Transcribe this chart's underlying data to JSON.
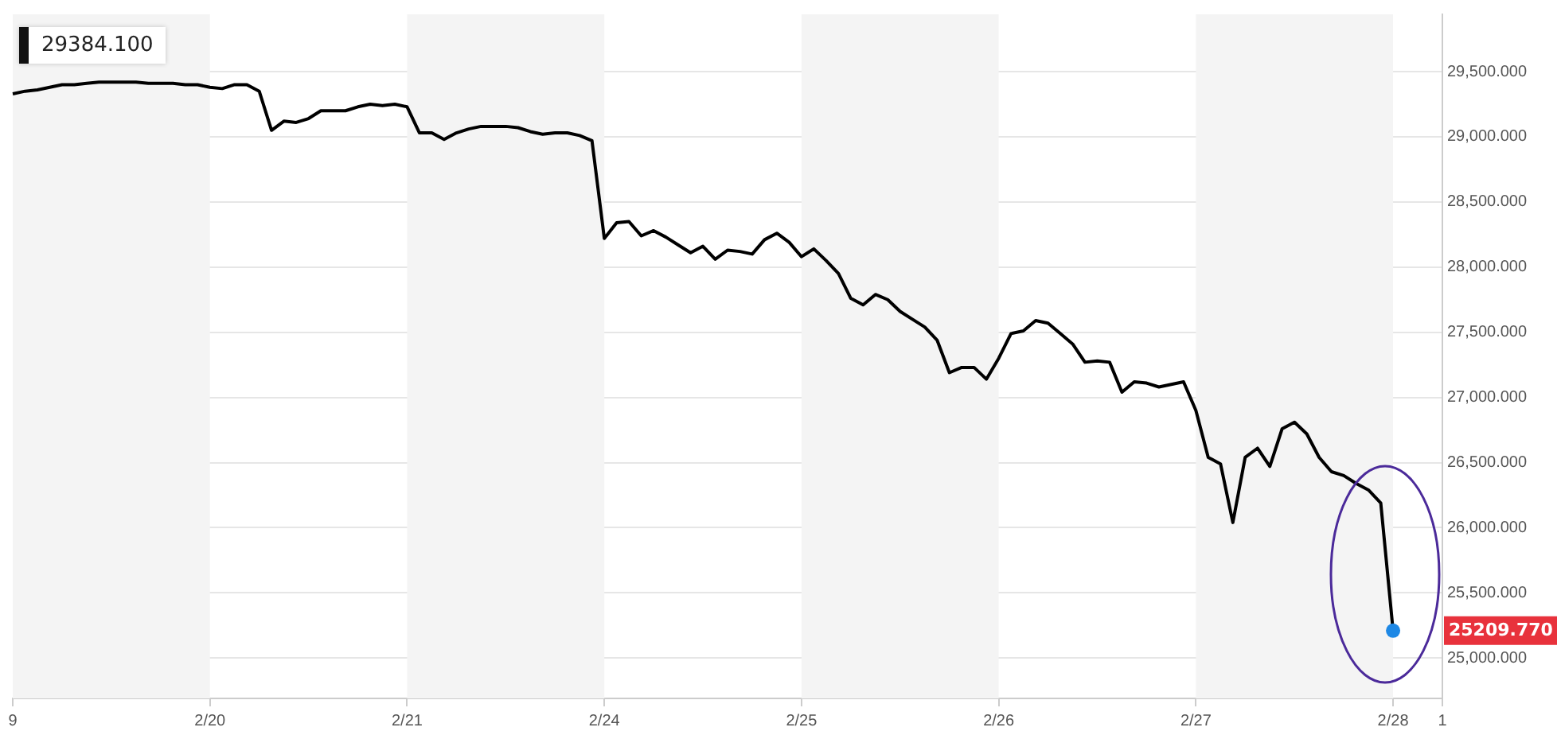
{
  "chart_data": {
    "type": "line",
    "categories": [
      "9",
      null,
      null,
      null,
      null,
      null,
      null,
      null,
      null,
      null,
      null,
      null,
      null,
      null,
      null,
      null,
      "2/20",
      null,
      null,
      null,
      null,
      null,
      null,
      null,
      null,
      null,
      null,
      null,
      null,
      null,
      null,
      null,
      "2/21",
      null,
      null,
      null,
      null,
      null,
      null,
      null,
      null,
      null,
      null,
      null,
      null,
      null,
      null,
      null,
      "2/24",
      null,
      null,
      null,
      null,
      null,
      null,
      null,
      null,
      null,
      null,
      null,
      null,
      null,
      null,
      null,
      "2/25",
      null,
      null,
      null,
      null,
      null,
      null,
      null,
      null,
      null,
      null,
      null,
      null,
      null,
      null,
      null,
      "2/26",
      null,
      null,
      null,
      null,
      null,
      null,
      null,
      null,
      null,
      null,
      null,
      null,
      null,
      null,
      null,
      "2/27",
      null,
      null,
      null,
      null,
      null,
      null,
      null,
      null,
      null,
      null,
      null,
      null,
      null,
      null,
      null,
      "2/28",
      null,
      null,
      null,
      "1"
    ],
    "series": [
      {
        "color": "#000000",
        "values": [
          29330,
          29350,
          29360,
          29380,
          29400,
          29400,
          29410,
          29420,
          29420,
          29420,
          29420,
          29410,
          29410,
          29410,
          29400,
          29400,
          29380,
          29370,
          29400,
          29400,
          29350,
          29050,
          29120,
          29110,
          29140,
          29200,
          29200,
          29200,
          29230,
          29250,
          29240,
          29250,
          29230,
          29030,
          29030,
          28980,
          29030,
          29060,
          29080,
          29080,
          29080,
          29070,
          29040,
          29020,
          29030,
          29030,
          29010,
          28970,
          28220,
          28340,
          28350,
          28240,
          28280,
          28230,
          28170,
          28110,
          28160,
          28060,
          28130,
          28120,
          28100,
          28210,
          28260,
          28190,
          28080,
          28140,
          28050,
          27950,
          27760,
          27710,
          27790,
          27750,
          27660,
          27600,
          27540,
          27440,
          27190,
          27230,
          27230,
          27140,
          27300,
          27490,
          27510,
          27590,
          27570,
          27490,
          27410,
          27270,
          27280,
          27270,
          27040,
          27120,
          27110,
          27080,
          27100,
          27120,
          26900,
          26540,
          26490,
          26040,
          26540,
          26610,
          26470,
          26760,
          26810,
          26720,
          26540,
          26430,
          26400,
          26340,
          26290,
          26190,
          25209.77,
          null,
          null,
          null,
          null
        ]
      }
    ],
    "ylim": [
      24690,
      29940
    ],
    "yticks": [
      {
        "value": 25000,
        "label": "25,000.000"
      },
      {
        "value": 25500,
        "label": "25,500.000"
      },
      {
        "value": 26000,
        "label": "26,000.000"
      },
      {
        "value": 26500,
        "label": "26,500.000"
      },
      {
        "value": 27000,
        "label": "27,000.000"
      },
      {
        "value": 27500,
        "label": "27,500.000"
      },
      {
        "value": 28000,
        "label": "28,000.000"
      },
      {
        "value": 28500,
        "label": "28,500.000"
      },
      {
        "value": 29000,
        "label": "29,000.000"
      },
      {
        "value": 29500,
        "label": "29,500.000"
      }
    ],
    "bands": [
      {
        "axis": "x",
        "from": "9",
        "to": "2/20",
        "color": "#f4f4f4"
      },
      {
        "axis": "x",
        "from": "2/21",
        "to": "2/24",
        "color": "#f4f4f4"
      },
      {
        "axis": "x",
        "from": "2/25",
        "to": "2/26",
        "color": "#f4f4f4"
      },
      {
        "axis": "x",
        "from": "2/27",
        "to": "2/28",
        "color": "#f4f4f4"
      }
    ],
    "annotations": [
      "29384.100",
      "25209.770"
    ],
    "grid": "y",
    "legend": false,
    "marker": "none",
    "line_style": "solid"
  }
}
